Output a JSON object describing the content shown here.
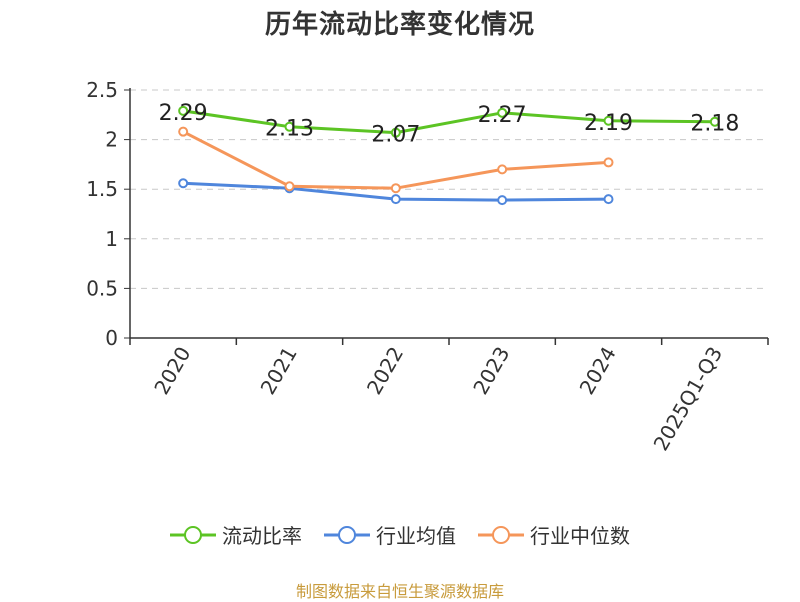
{
  "colors": {
    "series_current": "#5cc424",
    "series_avg": "#4f86dc",
    "series_median": "#f5965a"
  },
  "chart_data": {
    "type": "line",
    "title": "历年流动比率变化情况",
    "categories": [
      "2020",
      "2021",
      "2022",
      "2023",
      "2024",
      "2025Q1-Q3"
    ],
    "ylim": [
      0,
      2.5
    ],
    "yticks": [
      "0",
      "0.5",
      "1",
      "1.5",
      "2",
      "2.5"
    ],
    "xlabel": "",
    "ylabel": "",
    "grid": true,
    "legend_position": "bottom",
    "series": [
      {
        "name": "流动比率",
        "values": [
          2.29,
          2.13,
          2.07,
          2.27,
          2.19,
          2.18
        ],
        "labels": [
          "2.29",
          "2.13",
          "2.07",
          "2.27",
          "2.19",
          "2.18"
        ]
      },
      {
        "name": "行业均值",
        "values": [
          1.56,
          1.51,
          1.4,
          1.39,
          1.4,
          null
        ]
      },
      {
        "name": "行业中位数",
        "values": [
          2.08,
          1.53,
          1.51,
          1.7,
          1.77,
          null
        ]
      }
    ]
  },
  "source": "制图数据来自恒生聚源数据库"
}
